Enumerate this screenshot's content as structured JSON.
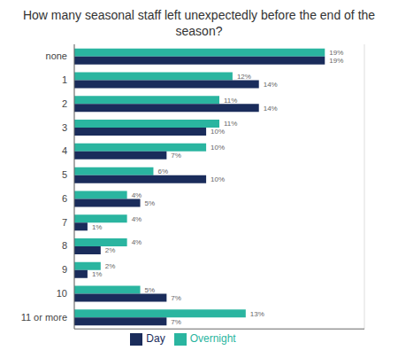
{
  "chart_data": {
    "type": "bar",
    "orientation": "horizontal",
    "title": "How many seasonal staff left unexpectedly before the end of the\nseason?",
    "categories": [
      "none",
      "1",
      "2",
      "3",
      "4",
      "5",
      "6",
      "7",
      "8",
      "9",
      "10",
      "11 or more"
    ],
    "series": [
      {
        "name": "Overnight",
        "color": "#2ab5a0",
        "values": [
          19,
          12,
          11,
          11,
          10,
          6,
          4,
          4,
          4,
          2,
          5,
          13
        ],
        "value_labels": [
          "19%",
          "12%",
          "11%",
          "11%",
          "10%",
          "6%",
          "4%",
          "4%",
          "4%",
          "2%",
          "5%",
          "13%"
        ]
      },
      {
        "name": "Day",
        "color": "#1a2c5b",
        "values": [
          19,
          14,
          14,
          10,
          7,
          10,
          5,
          1,
          2,
          1,
          7,
          7
        ],
        "value_labels": [
          "19%",
          "14%",
          "14%",
          "10%",
          "7%",
          "10%",
          "5%",
          "1%",
          "2%",
          "1%",
          "7%",
          "7%"
        ]
      }
    ],
    "xlim": [
      0,
      22
    ],
    "xticks": [
      0,
      5,
      10,
      15,
      20
    ],
    "grid": true,
    "legend": "bottom",
    "data_labels": true,
    "tick_labels": "y"
  }
}
